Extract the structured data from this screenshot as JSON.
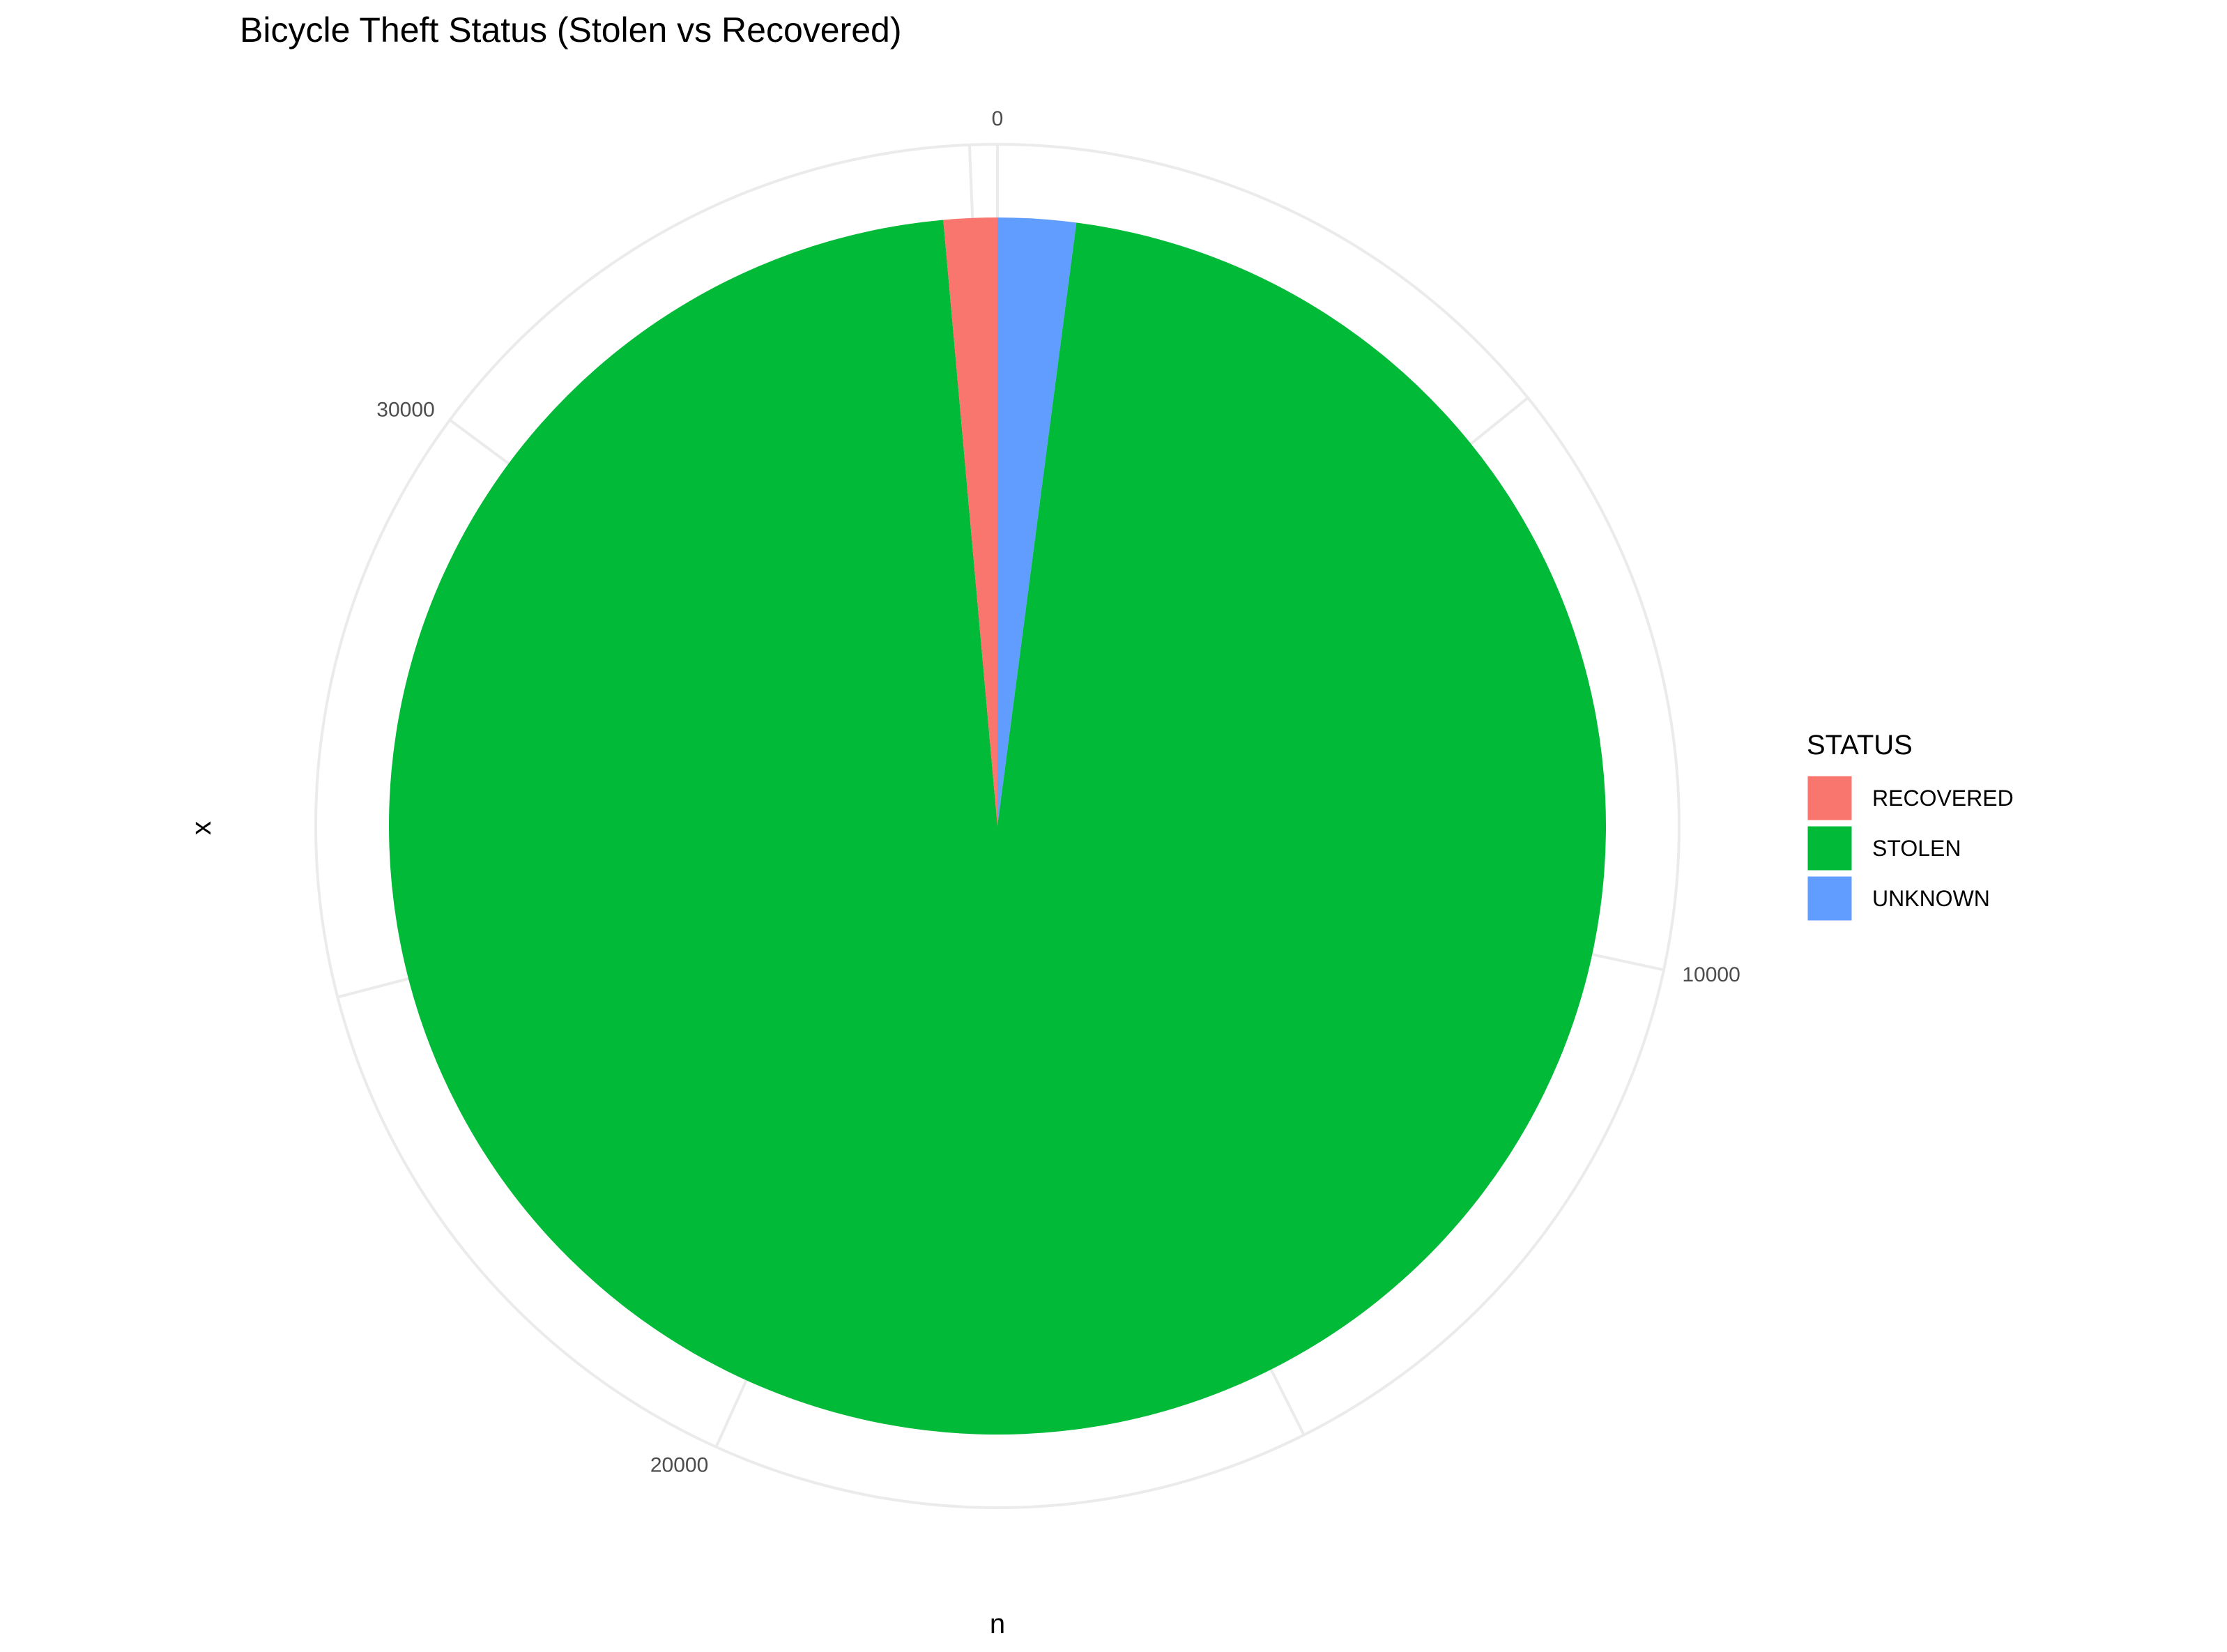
{
  "chart_data": {
    "type": "pie",
    "title": "Bicycle Theft Status (Stolen vs Recovered)",
    "xlabel": "n",
    "ylabel": "x",
    "categories": [
      "RECOVERED",
      "STOLEN",
      "UNKNOWN"
    ],
    "values": [
      500,
      34000,
      730
    ],
    "colors": {
      "RECOVERED": "#F8766D",
      "STOLEN": "#00BA38",
      "UNKNOWN": "#619CFF"
    },
    "slice_order_clockwise_from_top": [
      "UNKNOWN",
      "STOLEN",
      "RECOVERED"
    ],
    "angular_ticks": [
      0,
      10000,
      20000,
      30000
    ],
    "grid": true,
    "legend": {
      "title": "STATUS",
      "placement": "right",
      "items": [
        "RECOVERED",
        "STOLEN",
        "UNKNOWN"
      ]
    }
  }
}
